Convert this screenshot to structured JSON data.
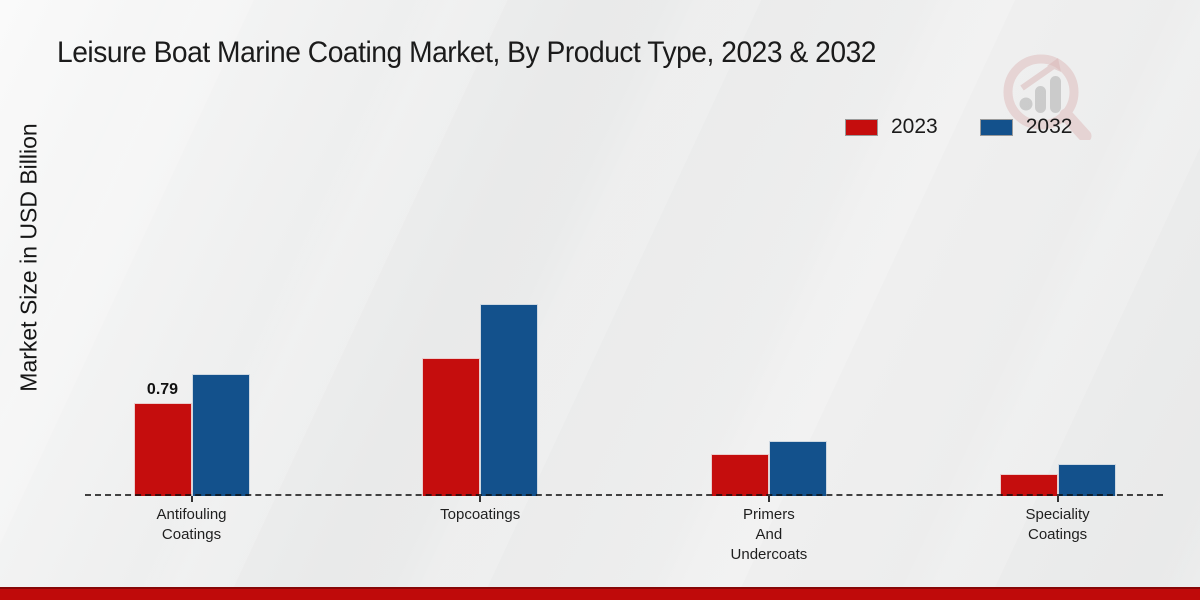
{
  "page": {
    "title": "Leisure Boat Marine Coating Market, By Product Type, 2023 & 2032"
  },
  "chart_data": {
    "type": "bar",
    "title": "Leisure Boat Marine Coating Market, By Product Type, 2023 & 2032",
    "xlabel": "",
    "ylabel": "Market Size in USD Billion",
    "categories": [
      "Antifouling\nCoatings",
      "Topcoatings",
      "Primers\nAnd\nUndercoats",
      "Speciality\nCoatings"
    ],
    "series": [
      {
        "name": "2023",
        "color": "#c50d0d",
        "values": [
          0.79,
          1.17,
          0.36,
          0.19
        ]
      },
      {
        "name": "2032",
        "color": "#13518c",
        "values": [
          1.04,
          1.63,
          0.47,
          0.27
        ]
      }
    ],
    "data_labels": [
      {
        "series": 0,
        "index": 0,
        "text": "0.79"
      }
    ],
    "legend_position": "top-right",
    "grid": false,
    "baseline_style": "dashed",
    "ylim": [
      0,
      2
    ]
  },
  "footer": {
    "bar_color": "#bf0a0a"
  },
  "watermark": {
    "name": "market-research-magnifier-logo",
    "ring_color": "#dcb9b9",
    "bars_color": "#bcbcbc"
  }
}
